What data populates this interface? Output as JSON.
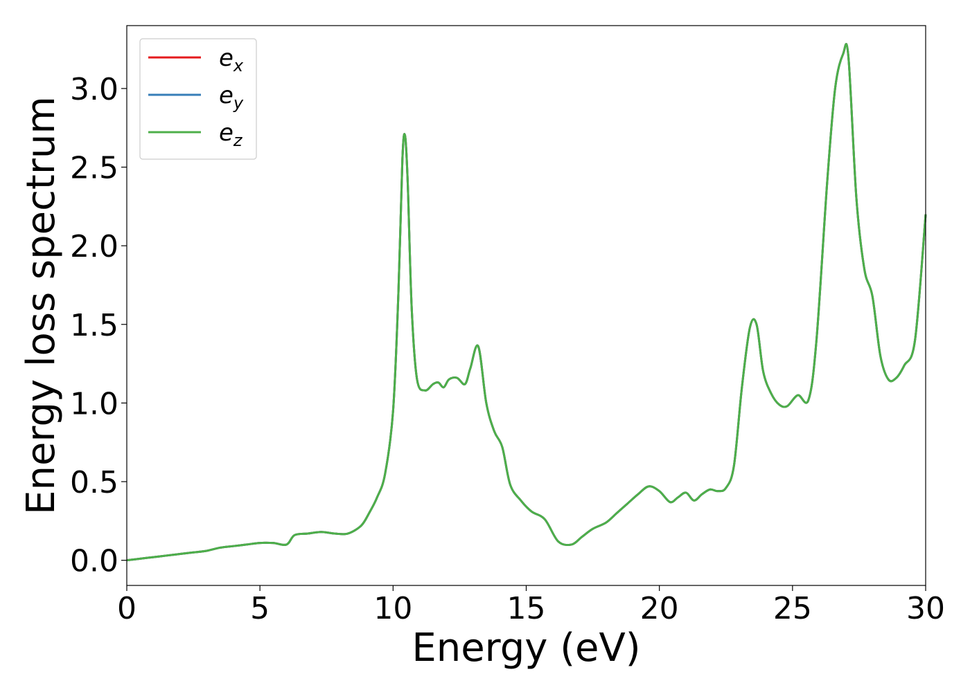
{
  "chart_data": {
    "type": "line",
    "title": "",
    "xlabel": "Energy (eV)",
    "ylabel": "Energy loss spectrum",
    "xlim": [
      0,
      30
    ],
    "ylim": [
      -0.16,
      3.4
    ],
    "xticks": [
      0,
      5,
      10,
      15,
      20,
      25,
      30
    ],
    "xtick_labels": [
      "0",
      "5",
      "10",
      "15",
      "20",
      "25",
      "30"
    ],
    "yticks": [
      0.0,
      0.5,
      1.0,
      1.5,
      2.0,
      2.5,
      3.0
    ],
    "ytick_labels": [
      "0.0",
      "0.5",
      "1.0",
      "1.5",
      "2.0",
      "2.5",
      "3.0"
    ],
    "grid": false,
    "legend_position": "upper left",
    "x": [
      0,
      0.5,
      1,
      1.5,
      2,
      2.5,
      3,
      3.5,
      4,
      4.5,
      5,
      5.5,
      6,
      6.3,
      6.8,
      7.3,
      7.8,
      8.3,
      8.8,
      9.1,
      9.4,
      9.7,
      10.0,
      10.2,
      10.35,
      10.45,
      10.55,
      10.7,
      10.9,
      11.2,
      11.5,
      11.7,
      11.9,
      12.1,
      12.4,
      12.7,
      12.9,
      13.2,
      13.5,
      13.8,
      14.1,
      14.4,
      14.8,
      15.2,
      15.7,
      16.2,
      16.7,
      17.1,
      17.5,
      18.0,
      18.4,
      18.8,
      19.2,
      19.6,
      20.0,
      20.4,
      20.7,
      21.0,
      21.3,
      21.6,
      21.9,
      22.2,
      22.5,
      22.8,
      23.1,
      23.4,
      23.65,
      23.9,
      24.2,
      24.5,
      24.8,
      25.2,
      25.6,
      25.9,
      26.3,
      26.6,
      26.9,
      27.1,
      27.4,
      27.7,
      28.0,
      28.3,
      28.6,
      28.9,
      29.2,
      29.6,
      30.0
    ],
    "series": [
      {
        "name": "e_x",
        "color": "#e41a1c",
        "values": [
          0.0,
          0.01,
          0.02,
          0.03,
          0.04,
          0.05,
          0.06,
          0.08,
          0.09,
          0.1,
          0.11,
          0.11,
          0.1,
          0.16,
          0.17,
          0.18,
          0.17,
          0.17,
          0.22,
          0.3,
          0.4,
          0.55,
          0.95,
          1.7,
          2.55,
          2.7,
          2.4,
          1.6,
          1.15,
          1.08,
          1.12,
          1.13,
          1.1,
          1.15,
          1.16,
          1.12,
          1.22,
          1.36,
          1.0,
          0.82,
          0.72,
          0.48,
          0.38,
          0.31,
          0.26,
          0.12,
          0.1,
          0.15,
          0.2,
          0.24,
          0.3,
          0.36,
          0.42,
          0.47,
          0.44,
          0.37,
          0.4,
          0.43,
          0.38,
          0.42,
          0.45,
          0.44,
          0.46,
          0.6,
          1.1,
          1.48,
          1.5,
          1.2,
          1.06,
          0.99,
          0.98,
          1.05,
          1.02,
          1.4,
          2.4,
          3.0,
          3.22,
          3.2,
          2.3,
          1.85,
          1.68,
          1.3,
          1.15,
          1.16,
          1.24,
          1.4,
          2.2
        ]
      },
      {
        "name": "e_y",
        "color": "#377eb8",
        "values": [
          0.0,
          0.01,
          0.02,
          0.03,
          0.04,
          0.05,
          0.06,
          0.08,
          0.09,
          0.1,
          0.11,
          0.11,
          0.1,
          0.16,
          0.17,
          0.18,
          0.17,
          0.17,
          0.22,
          0.3,
          0.4,
          0.55,
          0.95,
          1.7,
          2.55,
          2.7,
          2.4,
          1.6,
          1.15,
          1.08,
          1.12,
          1.13,
          1.1,
          1.15,
          1.16,
          1.12,
          1.22,
          1.36,
          1.0,
          0.82,
          0.72,
          0.48,
          0.38,
          0.31,
          0.26,
          0.12,
          0.1,
          0.15,
          0.2,
          0.24,
          0.3,
          0.36,
          0.42,
          0.47,
          0.44,
          0.37,
          0.4,
          0.43,
          0.38,
          0.42,
          0.45,
          0.44,
          0.46,
          0.6,
          1.1,
          1.48,
          1.5,
          1.2,
          1.06,
          0.99,
          0.98,
          1.05,
          1.02,
          1.4,
          2.4,
          3.0,
          3.22,
          3.2,
          2.3,
          1.85,
          1.68,
          1.3,
          1.15,
          1.16,
          1.24,
          1.4,
          2.2
        ]
      },
      {
        "name": "e_z",
        "color": "#4daf4a",
        "values": [
          0.0,
          0.01,
          0.02,
          0.03,
          0.04,
          0.05,
          0.06,
          0.08,
          0.09,
          0.1,
          0.11,
          0.11,
          0.1,
          0.16,
          0.17,
          0.18,
          0.17,
          0.17,
          0.22,
          0.3,
          0.4,
          0.55,
          0.95,
          1.7,
          2.55,
          2.7,
          2.4,
          1.6,
          1.15,
          1.08,
          1.12,
          1.13,
          1.1,
          1.15,
          1.16,
          1.12,
          1.22,
          1.36,
          1.0,
          0.82,
          0.72,
          0.48,
          0.38,
          0.31,
          0.26,
          0.12,
          0.1,
          0.15,
          0.2,
          0.24,
          0.3,
          0.36,
          0.42,
          0.47,
          0.44,
          0.37,
          0.4,
          0.43,
          0.38,
          0.42,
          0.45,
          0.44,
          0.46,
          0.6,
          1.1,
          1.48,
          1.5,
          1.2,
          1.06,
          0.99,
          0.98,
          1.05,
          1.02,
          1.4,
          2.4,
          3.0,
          3.22,
          3.2,
          2.3,
          1.85,
          1.68,
          1.3,
          1.15,
          1.16,
          1.24,
          1.4,
          2.2
        ]
      }
    ],
    "legend": [
      {
        "base": "e",
        "sub": "x",
        "color": "#e41a1c"
      },
      {
        "base": "e",
        "sub": "y",
        "color": "#377eb8"
      },
      {
        "base": "e",
        "sub": "z",
        "color": "#4daf4a"
      }
    ]
  }
}
